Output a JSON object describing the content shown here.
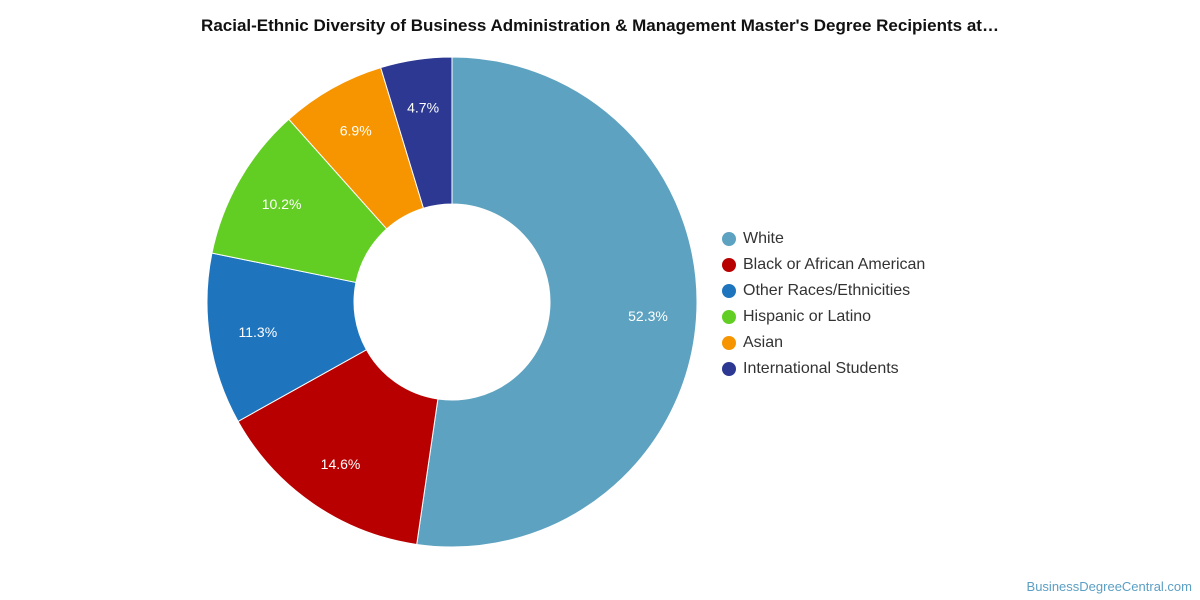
{
  "chart_data": {
    "type": "pie",
    "title": "Racial-Ethnic Diversity of Business Administration & Management Master's Degree Recipients at…",
    "donut": true,
    "legend_position": "right",
    "slices": [
      {
        "label": "White",
        "value": 52.3,
        "display": "52.3%",
        "color": "#5da2c0"
      },
      {
        "label": "Black or African American",
        "value": 14.6,
        "display": "14.6%",
        "color": "#b90000"
      },
      {
        "label": "Other Races/Ethnicities",
        "value": 11.3,
        "display": "11.3%",
        "color": "#1f74be"
      },
      {
        "label": "Hispanic or Latino",
        "value": 10.2,
        "display": "10.2%",
        "color": "#62ce24"
      },
      {
        "label": "Asian",
        "value": 6.9,
        "display": "6.9%",
        "color": "#f79500"
      },
      {
        "label": "International Students",
        "value": 4.7,
        "display": "4.7%",
        "color": "#2c3892"
      }
    ]
  },
  "source": "BusinessDegreeCentral.com"
}
